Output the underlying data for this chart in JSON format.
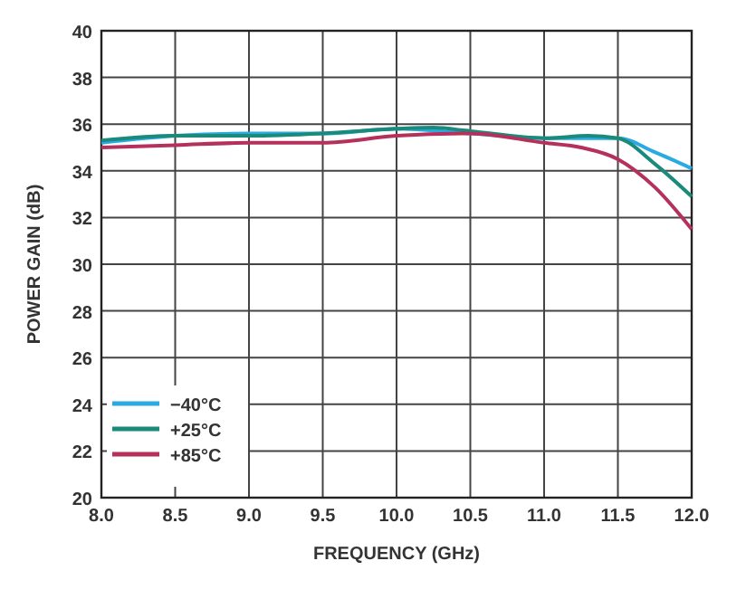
{
  "chart_data": {
    "type": "line",
    "xlabel": "FREQUENCY (GHz)",
    "ylabel": "POWER GAIN (dB)",
    "xlim": [
      8,
      12
    ],
    "ylim": [
      20,
      40
    ],
    "xticks": [
      {
        "value": 8,
        "label": "8.0"
      },
      {
        "value": 8.5,
        "label": "8.5"
      },
      {
        "value": 9,
        "label": "9.0"
      },
      {
        "value": 9.5,
        "label": "9.5"
      },
      {
        "value": 10,
        "label": "10.0"
      },
      {
        "value": 10.5,
        "label": "10.5"
      },
      {
        "value": 11,
        "label": "11.0"
      },
      {
        "value": 11.5,
        "label": "11.5"
      },
      {
        "value": 12,
        "label": "12.0"
      }
    ],
    "yticks": [
      20,
      22,
      24,
      26,
      28,
      30,
      32,
      34,
      36,
      38,
      40
    ],
    "grid": true,
    "legend": "bottom left",
    "line_style": "solid",
    "series": [
      {
        "name": "−40°C",
        "color": "#29abe2",
        "x": [
          8,
          8.5,
          9,
          9.5,
          10,
          10.5,
          11,
          11.5,
          11.75,
          12
        ],
        "values": [
          35.2,
          35.5,
          35.6,
          35.6,
          35.8,
          35.6,
          35.4,
          35.4,
          34.8,
          34.1
        ]
      },
      {
        "name": "+25°C",
        "color": "#1a8a7a",
        "x": [
          8,
          8.5,
          9,
          9.5,
          10,
          10.25,
          10.5,
          11,
          11.3,
          11.5,
          11.75,
          12
        ],
        "values": [
          35.3,
          35.5,
          35.5,
          35.6,
          35.8,
          35.85,
          35.7,
          35.4,
          35.5,
          35.4,
          34.3,
          32.9
        ]
      },
      {
        "name": "+85°C",
        "color": "#b5305a",
        "x": [
          8,
          8.5,
          9,
          9.5,
          10,
          10.5,
          11,
          11.25,
          11.5,
          11.75,
          12
        ],
        "values": [
          35.0,
          35.1,
          35.2,
          35.2,
          35.5,
          35.6,
          35.2,
          35.0,
          34.5,
          33.3,
          31.5
        ]
      }
    ]
  }
}
